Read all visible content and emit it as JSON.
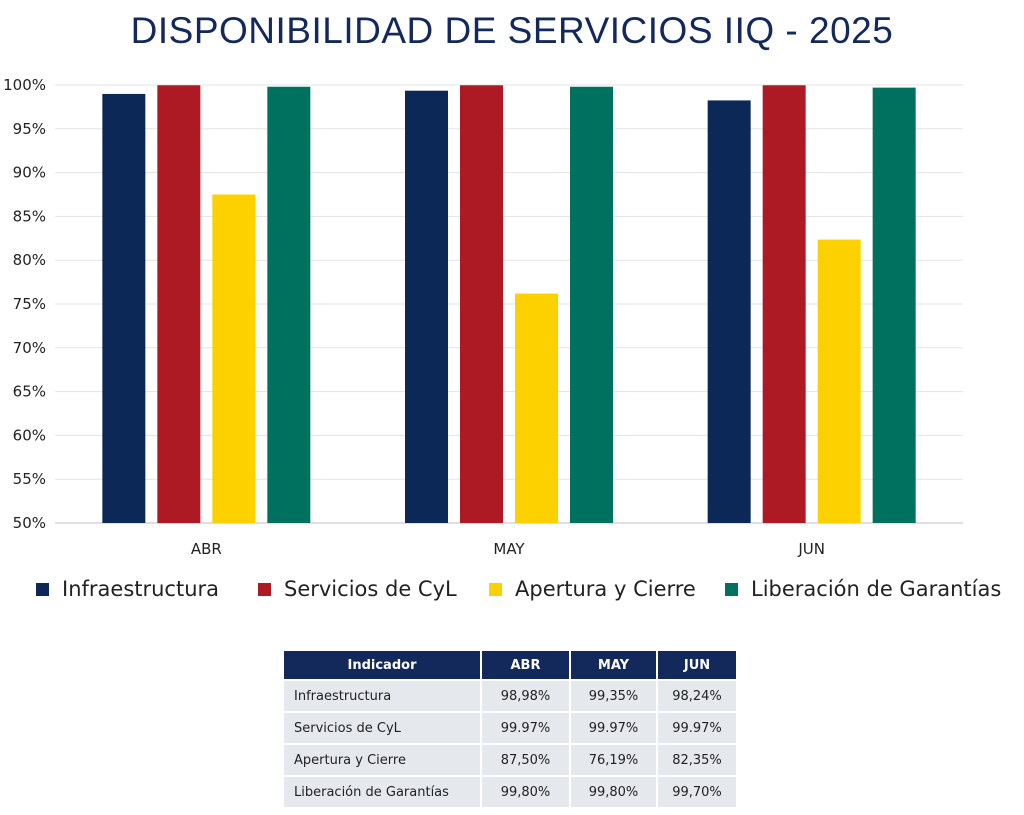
{
  "title": "DISPONIBILIDAD DE SERVICIOS IIQ - 2025",
  "colors": {
    "Infraestructura": "#0b2857",
    "Servicios de CyL": "#ad1a24",
    "Apertura y Cierre": "#fdd000",
    "Liberación de Garantías": "#00715f",
    "table_header": "#13295b",
    "table_cell": "#e5e8ec"
  },
  "chart_data": {
    "type": "bar",
    "categories": [
      "ABR",
      "MAY",
      "JUN"
    ],
    "series": [
      {
        "name": "Infraestructura",
        "values": [
          98.98,
          99.35,
          98.24
        ]
      },
      {
        "name": "Servicios de CyL",
        "values": [
          99.97,
          99.97,
          99.97
        ]
      },
      {
        "name": "Apertura y Cierre",
        "values": [
          87.5,
          76.19,
          82.35
        ]
      },
      {
        "name": "Liberación de Garantías",
        "values": [
          99.8,
          99.8,
          99.7
        ]
      }
    ],
    "ylim": [
      50,
      100
    ],
    "yticks": [
      "50%",
      "55%",
      "60%",
      "65%",
      "70%",
      "75%",
      "80%",
      "85%",
      "90%",
      "95%",
      "100%"
    ],
    "ytick_values": [
      50,
      55,
      60,
      65,
      70,
      75,
      80,
      85,
      90,
      95,
      100
    ],
    "grid": true,
    "legend": "bottom"
  },
  "legend": [
    "Infraestructura",
    "Servicios de CyL",
    "Apertura y Cierre",
    "Liberación de Garantías"
  ],
  "table": {
    "headers": [
      "Indicador",
      "ABR",
      "MAY",
      "JUN"
    ],
    "rows": [
      [
        "Infraestructura",
        "98,98%",
        "99,35%",
        "98,24%"
      ],
      [
        "Servicios de CyL",
        "99.97%",
        "99.97%",
        "99.97%"
      ],
      [
        "Apertura y Cierre",
        "87,50%",
        "76,19%",
        "82,35%"
      ],
      [
        "Liberación de Garantías",
        "99,80%",
        "99,80%",
        "99,70%"
      ]
    ]
  }
}
